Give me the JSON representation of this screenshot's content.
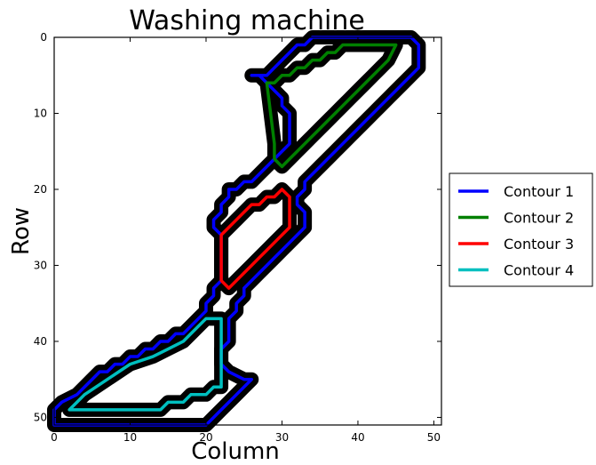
{
  "chart_data": {
    "type": "line",
    "title": "Washing machine",
    "xlabel": "Column",
    "ylabel": "Row",
    "xlim": [
      0,
      51
    ],
    "ylim": [
      51,
      0
    ],
    "y_inverted": true,
    "grid": false,
    "background_image": "binary mask of contour outlines (black on white)",
    "xticks": [
      0,
      10,
      20,
      30,
      40,
      50
    ],
    "yticks": [
      0,
      10,
      20,
      30,
      40,
      50
    ],
    "legend": {
      "placement": "outside right"
    },
    "series": [
      {
        "name": "Contour 1",
        "color": "#0000ff",
        "x": [
          37,
          47,
          48,
          48,
          47,
          46,
          45,
          44,
          43,
          42,
          41,
          40,
          39,
          38,
          37,
          36,
          35,
          34,
          33,
          33,
          32,
          32,
          33,
          33,
          32,
          31,
          30,
          29,
          28,
          27,
          26,
          25,
          25,
          24,
          24,
          23,
          23,
          22,
          22,
          23,
          23,
          25,
          26,
          25,
          24,
          23,
          22,
          21,
          20,
          19,
          18,
          17,
          16,
          15,
          14,
          13,
          1,
          0,
          0,
          1,
          3,
          4,
          5,
          6,
          7,
          8,
          9,
          10,
          11,
          12,
          13,
          14,
          15,
          16,
          17,
          18,
          19,
          20,
          20,
          21,
          21,
          22,
          22,
          21,
          21,
          22,
          22,
          23,
          23,
          24,
          25,
          26,
          27,
          28,
          29,
          30,
          31,
          31,
          30,
          30,
          29,
          28,
          27,
          27,
          26,
          27,
          28,
          29,
          30,
          31,
          32,
          33,
          34,
          35,
          36,
          37
        ],
        "y": [
          0,
          0,
          1,
          4,
          5,
          6,
          7,
          8,
          9,
          10,
          11,
          12,
          13,
          14,
          15,
          16,
          17,
          18,
          19,
          20,
          21,
          22,
          23,
          25,
          26,
          27,
          28,
          29,
          30,
          31,
          32,
          33,
          34,
          35,
          36,
          37,
          40,
          41,
          43,
          44,
          44,
          45,
          45,
          46,
          47,
          48,
          49,
          50,
          51,
          51,
          51,
          51,
          51,
          51,
          51,
          51,
          51,
          51,
          49,
          48,
          47,
          46,
          45,
          44,
          44,
          43,
          43,
          42,
          42,
          41,
          41,
          40,
          40,
          39,
          39,
          38,
          37,
          36,
          35,
          34,
          33,
          32,
          26,
          25,
          24,
          23,
          22,
          21,
          20,
          20,
          19,
          19,
          18,
          17,
          16,
          15,
          14,
          10,
          9,
          8,
          7,
          6,
          5,
          5,
          5,
          5,
          5,
          4,
          3,
          2,
          1,
          1,
          0,
          0,
          0,
          0
        ]
      },
      {
        "name": "Contour 2",
        "color": "#008000",
        "x": [
          45,
          44,
          43,
          42,
          41,
          40,
          39,
          38,
          37,
          36,
          35,
          34,
          33,
          32,
          31,
          30,
          29,
          29,
          28,
          29,
          30,
          31,
          32,
          33,
          34,
          35,
          36,
          37,
          38,
          45
        ],
        "y": [
          1,
          3,
          4,
          5,
          6,
          7,
          8,
          9,
          10,
          11,
          12,
          13,
          14,
          15,
          16,
          17,
          16,
          14,
          6,
          6,
          5,
          5,
          4,
          4,
          3,
          3,
          2,
          2,
          1,
          1
        ]
      },
      {
        "name": "Contour 3",
        "color": "#ff0000",
        "x": [
          31,
          31,
          30,
          29,
          28,
          27,
          26,
          25,
          24,
          23,
          22,
          22,
          23,
          24,
          25,
          26,
          27,
          28,
          29,
          30,
          31
        ],
        "y": [
          21,
          25,
          26,
          27,
          28,
          29,
          30,
          31,
          32,
          33,
          32,
          26,
          25,
          24,
          23,
          22,
          22,
          21,
          21,
          20,
          21
        ]
      },
      {
        "name": "Contour 4",
        "color": "#00bfbf",
        "x": [
          22,
          22,
          21,
          20,
          19,
          18,
          17,
          16,
          15,
          14,
          13,
          12,
          11,
          10,
          9,
          8,
          7,
          6,
          5,
          4,
          3,
          2,
          3,
          4,
          10,
          13,
          15,
          17,
          18,
          20,
          22
        ],
        "y": [
          37,
          46,
          46,
          47,
          47,
          47,
          48,
          48,
          48,
          49,
          49,
          49,
          49,
          49,
          49,
          49,
          49,
          49,
          49,
          49,
          49,
          49,
          48,
          47,
          43,
          42,
          41,
          40,
          39,
          37,
          37
        ]
      }
    ]
  }
}
